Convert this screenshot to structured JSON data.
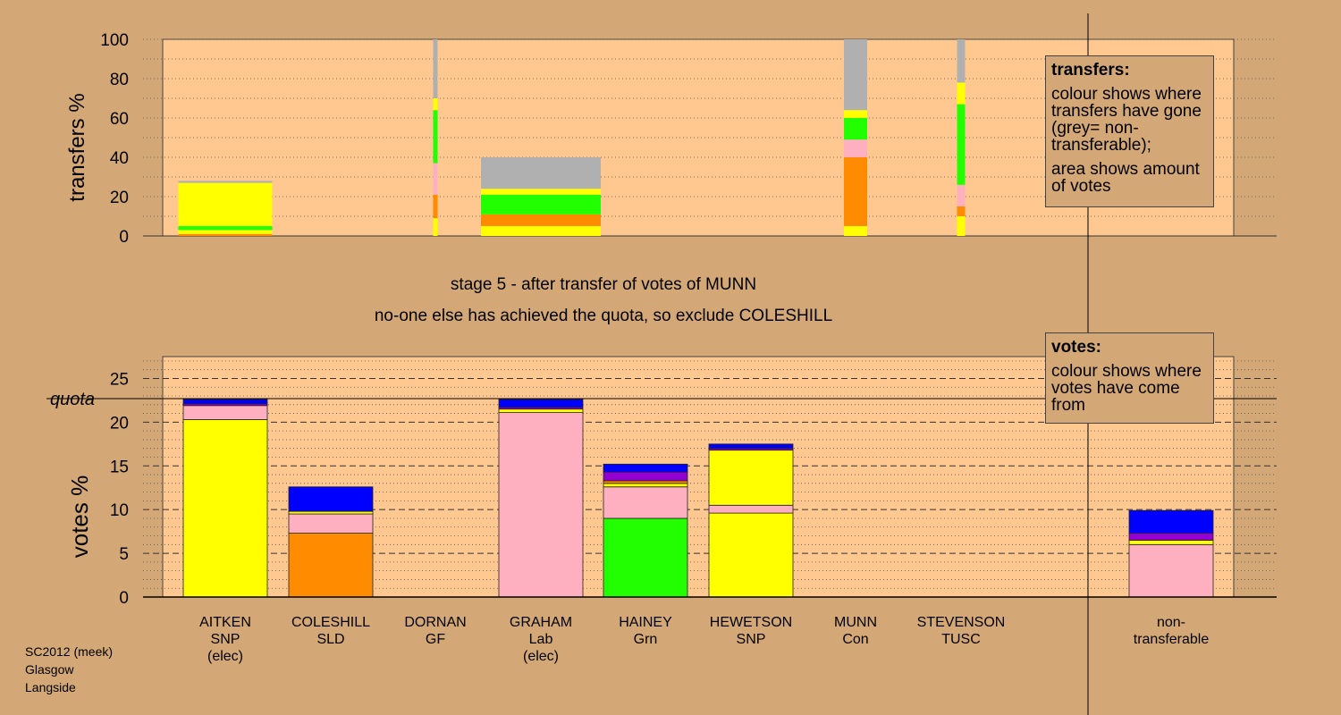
{
  "chart_data": [
    {
      "type": "bar",
      "name": "transfers",
      "ylabel": "transfers %",
      "ylim": [
        0,
        100
      ],
      "yticks": [
        0,
        20,
        40,
        60,
        80,
        100
      ],
      "bars": [
        {
          "candidate": "AITKEN",
          "segments": [
            {
              "color": "#ff8c00",
              "from": 0,
              "to": 1
            },
            {
              "color": "#ffff00",
              "from": 1,
              "to": 3
            },
            {
              "color": "#22ff00",
              "from": 3,
              "to": 5
            },
            {
              "color": "#ffff00",
              "from": 5,
              "to": 27
            },
            {
              "color": "#b0b0b0",
              "from": 27,
              "to": 28
            }
          ]
        },
        {
          "candidate": "DORNAN",
          "segments": [
            {
              "color": "#ffff00",
              "from": 0,
              "to": 9
            },
            {
              "color": "#ff8c00",
              "from": 9,
              "to": 21
            },
            {
              "color": "#ffb0c0",
              "from": 21,
              "to": 37
            },
            {
              "color": "#22ff00",
              "from": 37,
              "to": 64
            },
            {
              "color": "#ffff00",
              "from": 64,
              "to": 70
            },
            {
              "color": "#b0b0b0",
              "from": 70,
              "to": 100
            }
          ]
        },
        {
          "candidate": "GRAHAM",
          "segments": [
            {
              "color": "#ffff00",
              "from": 0,
              "to": 5
            },
            {
              "color": "#ff8c00",
              "from": 5,
              "to": 11
            },
            {
              "color": "#22ff00",
              "from": 11,
              "to": 21
            },
            {
              "color": "#ffff00",
              "from": 21,
              "to": 24
            },
            {
              "color": "#b0b0b0",
              "from": 24,
              "to": 40
            }
          ]
        },
        {
          "candidate": "MUNN",
          "segments": [
            {
              "color": "#ffff00",
              "from": 0,
              "to": 5
            },
            {
              "color": "#ff8c00",
              "from": 5,
              "to": 40
            },
            {
              "color": "#ffb0c0",
              "from": 40,
              "to": 49
            },
            {
              "color": "#22ff00",
              "from": 49,
              "to": 60
            },
            {
              "color": "#ffff00",
              "from": 60,
              "to": 64
            },
            {
              "color": "#b0b0b0",
              "from": 64,
              "to": 100
            }
          ]
        },
        {
          "candidate": "STEVENSON",
          "segments": [
            {
              "color": "#ffff00",
              "from": 0,
              "to": 10
            },
            {
              "color": "#ff8c00",
              "from": 10,
              "to": 15
            },
            {
              "color": "#ffb0c0",
              "from": 15,
              "to": 26
            },
            {
              "color": "#22ff00",
              "from": 26,
              "to": 67
            },
            {
              "color": "#ffff00",
              "from": 67,
              "to": 78
            },
            {
              "color": "#b0b0b0",
              "from": 78,
              "to": 100
            }
          ]
        }
      ]
    },
    {
      "type": "bar",
      "name": "votes",
      "ylabel": "votes %",
      "ylim": [
        0,
        27.5
      ],
      "yticks": [
        0,
        5,
        10,
        15,
        20,
        25
      ],
      "quota": 22.7,
      "bars": [
        {
          "candidate": "AITKEN",
          "segments": [
            {
              "color": "#ffff00",
              "value": 20.3
            },
            {
              "color": "#ffb0c0",
              "value": 1.6
            },
            {
              "color": "#9400d3",
              "value": 0.2
            },
            {
              "color": "#0000ff",
              "value": 0.5
            }
          ]
        },
        {
          "candidate": "COLESHILL",
          "segments": [
            {
              "color": "#ff8c00",
              "value": 7.3
            },
            {
              "color": "#ffb0c0",
              "value": 2.2
            },
            {
              "color": "#ffff00",
              "value": 0.3
            },
            {
              "color": "#0000ff",
              "value": 2.8
            }
          ]
        },
        {
          "candidate": "DORNAN",
          "segments": []
        },
        {
          "candidate": "GRAHAM",
          "segments": [
            {
              "color": "#ffb0c0",
              "value": 21.1
            },
            {
              "color": "#ffff00",
              "value": 0.4
            },
            {
              "color": "#9400d3",
              "value": 0.2
            },
            {
              "color": "#0000ff",
              "value": 0.9
            }
          ]
        },
        {
          "candidate": "HAINEY",
          "segments": [
            {
              "color": "#22ff00",
              "value": 9.0
            },
            {
              "color": "#ffb0c0",
              "value": 3.6
            },
            {
              "color": "#ffff00",
              "value": 0.4
            },
            {
              "color": "#ff8c00",
              "value": 0.3
            },
            {
              "color": "#9400d3",
              "value": 1.0
            },
            {
              "color": "#0000ff",
              "value": 0.9
            }
          ]
        },
        {
          "candidate": "HEWETSON",
          "segments": [
            {
              "color": "#ffff00",
              "value": 9.6
            },
            {
              "color": "#ffb0c0",
              "value": 0.9
            },
            {
              "color": "#ffff00",
              "value": 6.3
            },
            {
              "color": "#9400d3",
              "value": 0.2
            },
            {
              "color": "#0000ff",
              "value": 0.5
            }
          ]
        },
        {
          "candidate": "MUNN",
          "segments": []
        },
        {
          "candidate": "STEVENSON",
          "segments": []
        },
        {
          "candidate": "non-transferable",
          "segments": [
            {
              "color": "#ffb0c0",
              "value": 6.0
            },
            {
              "color": "#ffff00",
              "value": 0.5
            },
            {
              "color": "#9400d3",
              "value": 0.8
            },
            {
              "color": "#0000ff",
              "value": 2.6
            }
          ]
        }
      ]
    }
  ],
  "labels": {
    "stage": "stage 5 - after transfer of votes of MUNN",
    "status": "no-one else has achieved the quota, so exclude COLESHILL",
    "quota": "quota"
  },
  "candidates": [
    {
      "id": "AITKEN",
      "lines": [
        "AITKEN",
        "SNP",
        "(elec)"
      ]
    },
    {
      "id": "COLESHILL",
      "lines": [
        "COLESHILL",
        "SLD"
      ]
    },
    {
      "id": "DORNAN",
      "lines": [
        "DORNAN",
        "GF"
      ]
    },
    {
      "id": "GRAHAM",
      "lines": [
        "GRAHAM",
        "Lab",
        "(elec)"
      ]
    },
    {
      "id": "HAINEY",
      "lines": [
        "HAINEY",
        "Grn"
      ]
    },
    {
      "id": "HEWETSON",
      "lines": [
        "HEWETSON",
        "SNP"
      ]
    },
    {
      "id": "MUNN",
      "lines": [
        "MUNN",
        "Con"
      ]
    },
    {
      "id": "STEVENSON",
      "lines": [
        "STEVENSON",
        "TUSC"
      ]
    },
    {
      "id": "non-transferable",
      "lines": [
        "non-",
        "transferable"
      ]
    }
  ],
  "legend_transfers": {
    "title": "transfers:",
    "line1": "colour shows where transfers have gone (grey= non-transferable);",
    "line2": "area shows amount of votes"
  },
  "legend_votes": {
    "title": "votes:",
    "line1": "colour shows where votes have come from"
  },
  "footer": {
    "line1": "SC2012 (meek)",
    "line2": "Glasgow",
    "line3": "Langside"
  },
  "colors": {
    "background": "#d4a876",
    "plot_area": "#ffc890"
  }
}
